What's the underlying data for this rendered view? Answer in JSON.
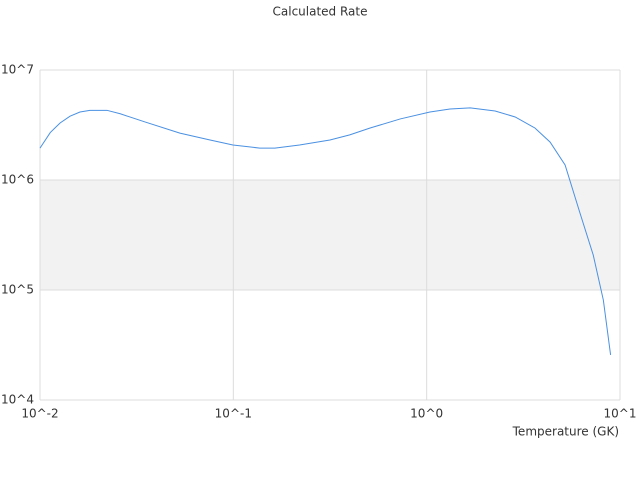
{
  "chart_data": {
    "type": "line",
    "title": "Calculated Rate",
    "x_label": "Temperature (GK)",
    "log_x": true,
    "log_y": true,
    "grid": true,
    "xlim": [
      0.01,
      10
    ],
    "ylim": [
      10000,
      10000000
    ],
    "xticks": [
      {
        "value": 0.01,
        "label": "10^-2"
      },
      {
        "value": 0.1,
        "label": "10^-1"
      },
      {
        "value": 1,
        "label": "10^0"
      },
      {
        "value": 10,
        "label": "10^1"
      }
    ],
    "yticks": [
      {
        "value": 10000,
        "label": "10^4"
      },
      {
        "value": 100000,
        "label": "10^5"
      },
      {
        "value": 1000000,
        "label": "10^6"
      },
      {
        "value": 10000000,
        "label": "10^7"
      }
    ],
    "x": [
      0.01,
      0.0113,
      0.0127,
      0.0143,
      0.0161,
      0.0181,
      0.0222,
      0.026,
      0.0349,
      0.0529,
      0.0758,
      0.0995,
      0.137,
      0.164,
      0.22,
      0.316,
      0.4,
      0.51,
      0.73,
      1.04,
      1.32,
      1.68,
      2.26,
      2.87,
      3.63,
      4.35,
      5.2,
      6.21,
      7.27,
      8.2,
      8.94
    ],
    "series": [
      {
        "color": "#4a90e2",
        "values": [
          1950000,
          2700000,
          3300000,
          3800000,
          4150000,
          4300000,
          4300000,
          4000000,
          3370000,
          2670000,
          2310000,
          2080000,
          1950000,
          1950000,
          2080000,
          2310000,
          2570000,
          2970000,
          3590000,
          4150000,
          4420000,
          4520000,
          4240000,
          3740000,
          2970000,
          2210000,
          1370000,
          500000,
          208000,
          81000,
          25700
        ]
      }
    ]
  }
}
